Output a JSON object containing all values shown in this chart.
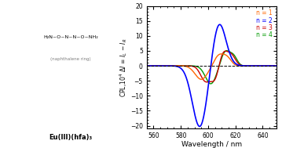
{
  "xlabel": "Wavelength / nm",
  "ylabel": "CPL,10⁴ ΔI = Iₗ − Iᵣ",
  "xlim": [
    555,
    650
  ],
  "ylim": [
    -21,
    20
  ],
  "yticks": [
    -20,
    -15,
    -10,
    -5,
    0,
    5,
    10,
    15,
    20
  ],
  "xticks": [
    560,
    580,
    600,
    620,
    640
  ],
  "legend": [
    "n = 1",
    "n = 2",
    "n = 3",
    "n = 4"
  ],
  "colors": [
    "#FF6600",
    "#0000FF",
    "#CC0000",
    "#009900"
  ],
  "background_color": "#ffffff",
  "n2_pos_peak_x": 608,
  "n2_pos_peak_y": 14.5,
  "n2_neg_peak_x": 594,
  "n2_neg_peak_y": -20.5
}
